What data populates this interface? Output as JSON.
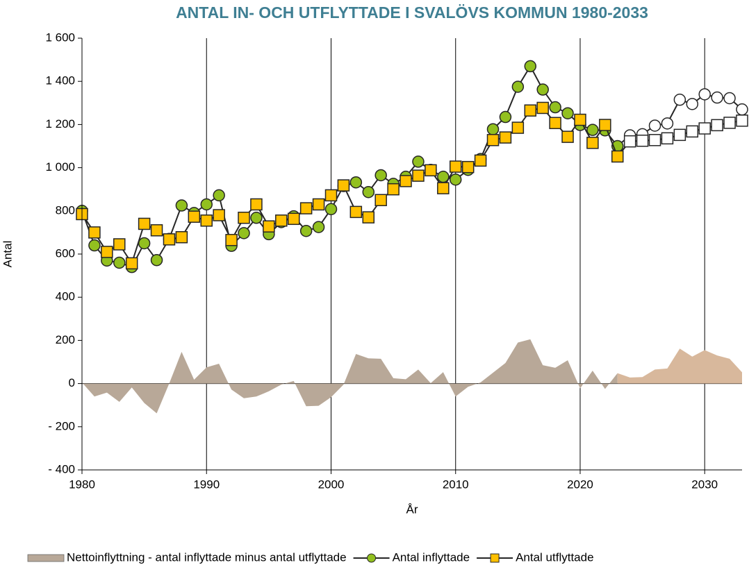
{
  "chart_data": {
    "type": "line",
    "title": "ANTAL IN- OCH UTFLYTTADE I SVALÖVS KOMMUN 1980-2033",
    "x_label": "År",
    "y_label": "Antal",
    "x": [
      1980,
      1981,
      1982,
      1983,
      1984,
      1985,
      1986,
      1987,
      1988,
      1989,
      1990,
      1991,
      1992,
      1993,
      1994,
      1995,
      1996,
      1997,
      1998,
      1999,
      2000,
      2001,
      2002,
      2003,
      2004,
      2005,
      2006,
      2007,
      2008,
      2009,
      2010,
      2011,
      2012,
      2013,
      2014,
      2015,
      2016,
      2017,
      2018,
      2019,
      2020,
      2021,
      2022,
      2023,
      2024,
      2025,
      2026,
      2027,
      2028,
      2029,
      2030,
      2031,
      2032,
      2033
    ],
    "forecast_from": 2024,
    "forecast_marker_color": "#ffffff",
    "series": [
      {
        "name": "Nettoinflyttning - antal inflyttade minus antal utflyttade",
        "type": "area",
        "color": "#b8a898",
        "forecast_color": "#d8b89c",
        "values": [
          5,
          -60,
          -42,
          -85,
          -18,
          -90,
          -138,
          0,
          147,
          18,
          75,
          92,
          -28,
          -68,
          -60,
          -36,
          -5,
          12,
          -105,
          -103,
          -63,
          -5,
          137,
          117,
          115,
          25,
          20,
          65,
          2,
          53,
          -60,
          -15,
          5,
          50,
          95,
          190,
          205,
          85,
          73,
          108,
          -22,
          60,
          -25,
          48,
          28,
          30,
          65,
          70,
          162,
          125,
          155,
          130,
          115,
          52
        ]
      },
      {
        "name": "Antal inflyttade",
        "type": "line",
        "marker": "circle",
        "color": "#92c01f",
        "values": [
          800,
          640,
          570,
          560,
          540,
          650,
          572,
          670,
          825,
          790,
          830,
          872,
          638,
          697,
          768,
          692,
          748,
          775,
          707,
          725,
          808,
          915,
          932,
          887,
          965,
          925,
          958,
          1028,
          990,
          958,
          945,
          990,
          1040,
          1178,
          1235,
          1375,
          1470,
          1362,
          1280,
          1252,
          1198,
          1175,
          1173,
          1100,
          1150,
          1155,
          1195,
          1205,
          1315,
          1295,
          1340,
          1325,
          1322,
          1270
        ]
      },
      {
        "name": "Antal utflyttade",
        "type": "line",
        "marker": "square",
        "color": "#ffc000",
        "values": [
          785,
          700,
          610,
          645,
          557,
          740,
          710,
          668,
          678,
          773,
          755,
          780,
          665,
          768,
          830,
          728,
          755,
          763,
          812,
          830,
          872,
          918,
          795,
          770,
          850,
          900,
          938,
          963,
          988,
          905,
          1005,
          1003,
          1033,
          1128,
          1140,
          1185,
          1265,
          1277,
          1207,
          1143,
          1222,
          1115,
          1198,
          1052,
          1122,
          1125,
          1128,
          1136,
          1152,
          1168,
          1182,
          1197,
          1208,
          1218
        ]
      }
    ],
    "xlim": [
      1980,
      2033
    ],
    "xticks": [
      1980,
      1990,
      2000,
      2010,
      2020,
      2030
    ],
    "ylim": [
      -400,
      1600
    ],
    "yticks": [
      {
        "value": -400,
        "label": "- 400"
      },
      {
        "value": -200,
        "label": "- 200"
      },
      0,
      200,
      400,
      600,
      800,
      {
        "value": 1000,
        "label": "1 000"
      },
      {
        "value": 1200,
        "label": "1 200"
      },
      {
        "value": 1400,
        "label": "1 400"
      },
      {
        "value": 1600,
        "label": "1 600"
      }
    ],
    "grid": "x",
    "legend": "bottom"
  }
}
